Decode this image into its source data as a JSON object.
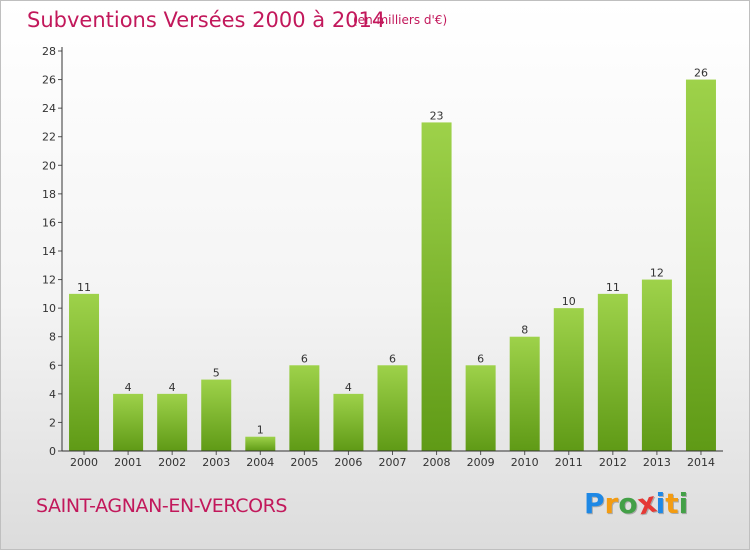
{
  "chart_data": {
    "type": "bar",
    "title": "Subventions Versées 2000 à 2014",
    "subtitle": "(en milliers d'€)",
    "categories": [
      "2000",
      "2001",
      "2002",
      "2003",
      "2004",
      "2005",
      "2006",
      "2007",
      "2008",
      "2009",
      "2010",
      "2011",
      "2012",
      "2013",
      "2014"
    ],
    "values": [
      11,
      4,
      4,
      5,
      1,
      6,
      4,
      6,
      23,
      6,
      8,
      10,
      11,
      12,
      26
    ],
    "ylim": [
      0,
      28
    ],
    "yticks": [
      0,
      2,
      4,
      6,
      8,
      10,
      12,
      14,
      16,
      18,
      20,
      22,
      24,
      26,
      28
    ],
    "grid": false,
    "bar_color_top": "#9ed24a",
    "bar_color_bottom": "#5f9a16"
  },
  "footer": {
    "town": "SAINT-AGNAN-EN-VERCORS",
    "brand_letters": [
      "P",
      "r",
      "o",
      "x",
      "i",
      "t",
      "i"
    ],
    "brand_colors": [
      "#1e88e5",
      "#f39c12",
      "#43a047",
      "#e53935",
      "#1e88e5",
      "#f39c12",
      "#43a047"
    ]
  },
  "colors": {
    "title": "#c2185b",
    "axis": "#333333"
  }
}
